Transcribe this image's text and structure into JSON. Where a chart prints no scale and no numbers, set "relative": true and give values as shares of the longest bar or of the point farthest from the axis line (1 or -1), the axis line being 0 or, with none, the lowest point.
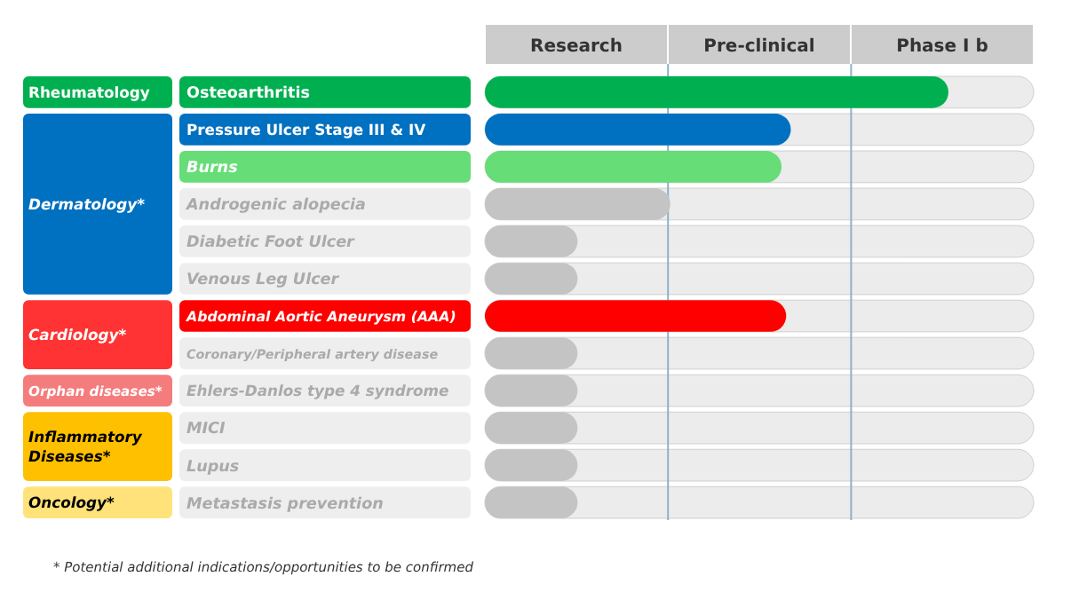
{
  "chart_data": {
    "type": "bar",
    "orientation": "horizontal",
    "relative": true,
    "categories": [
      "Osteoarthritis",
      "Pressure Ulcer Stage III & IV",
      "Burns",
      "Androgenic alopecia",
      "Diabetic Foot Ulcer",
      "Venous Leg Ulcer",
      "Abdominal Aortic Aneurysm (AAA)",
      "Coronary/Peripheral artery disease",
      "Ehlers-Danlos type 4 syndrome",
      "MICI",
      "Lupus",
      "Metastasis prevention"
    ],
    "values": [
      1,
      0.66,
      0.64,
      0.4,
      0.2,
      0.2,
      0.65,
      0.2,
      0.2,
      0.2,
      0.2,
      0.2
    ],
    "colors": [
      "#00b050",
      "#0070c0",
      "#66dd77",
      "#c4c4c4",
      "#c4c4c4",
      "#c4c4c4",
      "#ff0000",
      "#c4c4c4",
      "#c4c4c4",
      "#c4c4c4",
      "#c4c4c4",
      "#c4c4c4"
    ],
    "ref_lines": [
      {
        "axis": "x",
        "value": 0.395,
        "color": "#8fb0c8"
      },
      {
        "axis": "x",
        "value": 0.79,
        "color": "#8fb0c8"
      }
    ],
    "annotations": [
      "Research",
      "Pre-clinical",
      "Phase I b",
      "Rheumatology",
      "Dermatology*",
      "Cardiology*",
      "Orphan diseases*",
      "Inflammatory Diseases*",
      "Oncology*",
      "* Potential additional indications/opportunities to be confirmed"
    ]
  }
}
